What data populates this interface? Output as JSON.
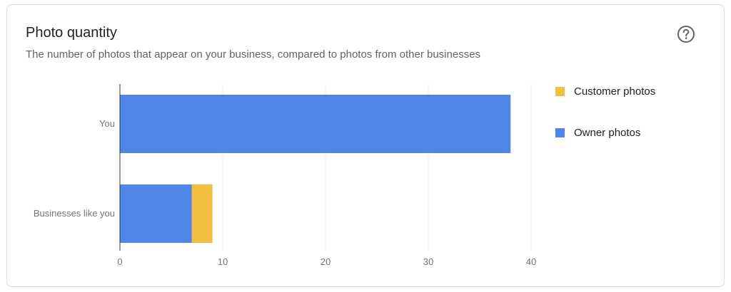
{
  "card": {
    "title": "Photo quantity",
    "subtitle": "The number of photos that appear on your business, compared to photos from other businesses",
    "help_icon": "help-circle-icon"
  },
  "colors": {
    "owner": "#5086e8",
    "customer": "#f3bd40",
    "grid": "#ebebeb",
    "axis": "#333333",
    "tick_text": "#757575"
  },
  "chart_data": {
    "type": "bar",
    "orientation": "horizontal",
    "stacked": true,
    "categories": [
      "You",
      "Businesses like you"
    ],
    "series": [
      {
        "name": "Owner photos",
        "values": [
          38,
          7
        ]
      },
      {
        "name": "Customer photos",
        "values": [
          0,
          2
        ]
      }
    ],
    "xlim": [
      0,
      40
    ],
    "xticks": [
      "0",
      "10",
      "20",
      "30",
      "40"
    ],
    "grid": true,
    "legend": {
      "position": "right",
      "order": [
        "Customer photos",
        "Owner photos"
      ]
    }
  }
}
